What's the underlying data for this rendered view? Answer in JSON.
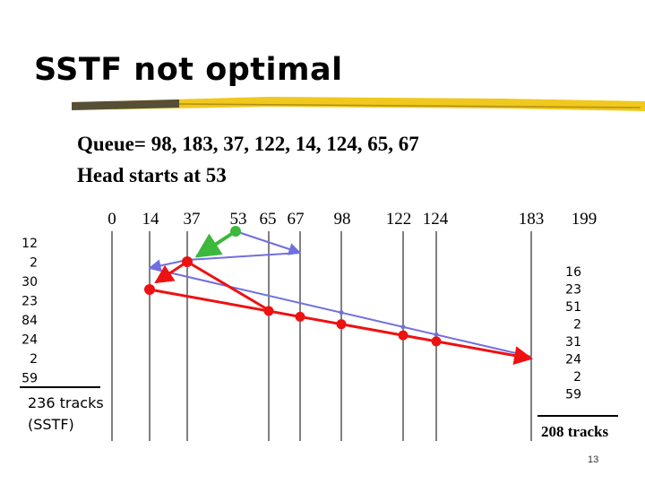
{
  "title": "SSTF not optimal",
  "queue_text": "Queue= 98, 183, 37, 122, 14, 124, 65, 67",
  "head_text": "Head starts at 53",
  "tracks": [
    "0",
    "14",
    "37",
    "53",
    "65",
    "67",
    "98",
    "122",
    "124",
    "183",
    "199"
  ],
  "left_distances": [
    "12",
    "2",
    "30",
    "23",
    "84",
    "24",
    "2",
    "59"
  ],
  "left_total_line1": "236 tracks",
  "left_total_line2": "(SSTF)",
  "right_distances": [
    "16",
    "23",
    "51",
    "2",
    "31",
    "24",
    "2",
    "59"
  ],
  "right_total": "208 tracks",
  "page_number": "13",
  "colors": {
    "title_bar": "#f0c81e",
    "sstf_path": "#ee1111",
    "alt_path": "#6f6fe0",
    "start_move": "#3cb83c"
  },
  "sstf_sequence": [
    53,
    65,
    67,
    37,
    14,
    98,
    122,
    124,
    183
  ],
  "alt_sequence": [
    53,
    37,
    14,
    65,
    67,
    98,
    122,
    124,
    183
  ]
}
